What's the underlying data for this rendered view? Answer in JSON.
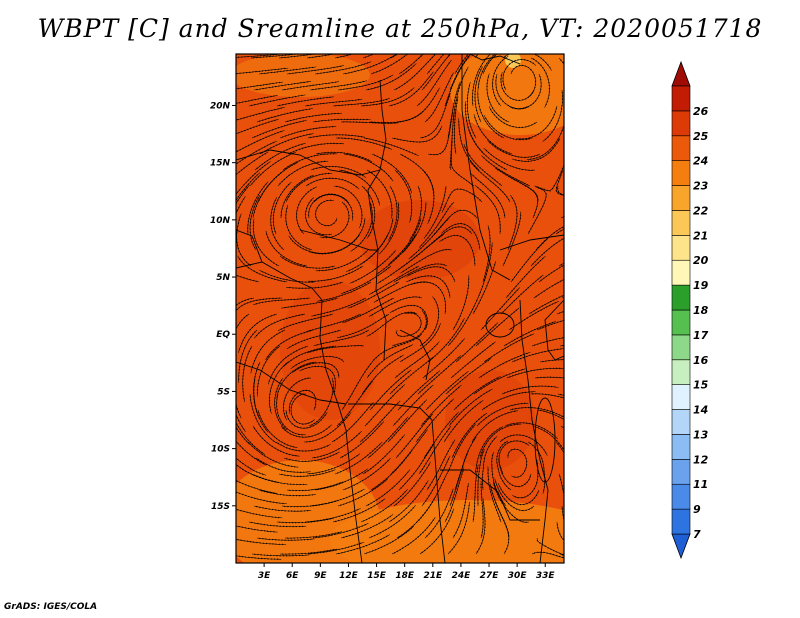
{
  "title": "WBPT [C] and Sreamline at 250hPa, VT: 2020051718",
  "credit": "GrADS: IGES/COLA",
  "map": {
    "lat_labels": [
      "20N",
      "15N",
      "10N",
      "5N",
      "EQ",
      "5S",
      "10S",
      "15S"
    ],
    "lon_labels": [
      "3E",
      "6E",
      "9E",
      "12E",
      "15E",
      "18E",
      "21E",
      "24E",
      "27E",
      "30E",
      "33E"
    ],
    "lon_range": [
      0,
      35
    ],
    "lat_range": [
      -20,
      24.5
    ]
  },
  "colorbar": {
    "labels": [
      "7",
      "9",
      "11",
      "12",
      "13",
      "14",
      "15",
      "16",
      "17",
      "18",
      "19",
      "20",
      "21",
      "22",
      "23",
      "24",
      "25",
      "26"
    ],
    "colors": [
      "#1e5fd6",
      "#2e74e0",
      "#4a8ae8",
      "#6aa2ee",
      "#8cbcf4",
      "#b3d6f8",
      "#e0f2ff",
      "#c8efc0",
      "#8ed88a",
      "#55c050",
      "#2aa02a",
      "#fff7b8",
      "#fde38a",
      "#fbc858",
      "#f9a42a",
      "#f47e10",
      "#ea5a0a",
      "#dc3a06",
      "#c21c04",
      "#a00c04"
    ]
  },
  "field_colors": {
    "base": "#e8500c",
    "warm": "#f47e10",
    "hot": "#dc3a06",
    "lines": "#000000"
  }
}
